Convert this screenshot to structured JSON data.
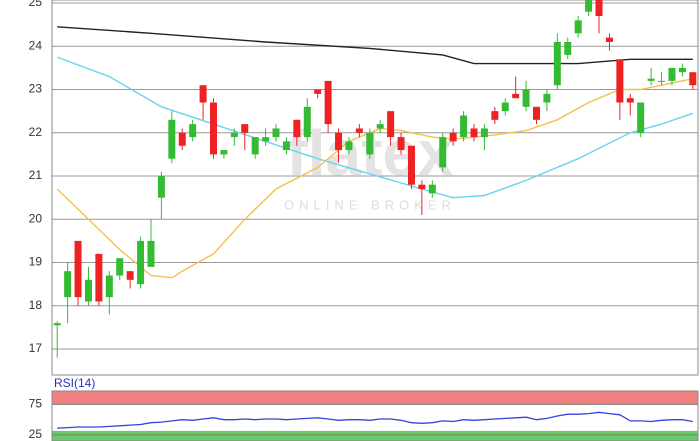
{
  "chart_data": [
    {
      "type": "candlestick",
      "open": [
        17.55,
        18.2,
        19.5,
        18.1,
        19.2,
        18.2,
        18.7,
        18.8,
        18.5,
        18.9,
        20.5,
        21.4,
        22.0,
        21.9,
        23.1,
        22.7,
        21.5,
        21.9,
        22.2,
        21.5,
        21.8,
        21.9,
        21.6,
        22.3,
        21.9,
        23.0,
        23.2,
        22.0,
        21.6,
        22.1,
        21.5,
        22.1,
        22.5,
        21.9,
        21.7,
        20.8,
        20.6,
        21.2,
        22.0,
        21.9,
        22.1,
        21.9,
        22.5,
        22.5,
        22.9,
        22.6,
        22.6,
        22.7,
        23.1,
        23.8,
        24.3,
        24.8,
        25.1,
        24.2,
        23.7,
        22.8,
        22.0,
        23.2,
        23.2,
        23.2,
        23.4,
        23.4
      ],
      "high": [
        17.65,
        19.0,
        19.5,
        18.9,
        19.2,
        18.8,
        19.1,
        18.8,
        19.6,
        20.0,
        21.1,
        22.5,
        22.1,
        22.3,
        23.1,
        22.8,
        21.6,
        22.1,
        22.2,
        21.9,
        22.1,
        22.2,
        21.9,
        22.3,
        22.8,
        23.0,
        23.2,
        22.1,
        21.9,
        22.2,
        22.1,
        22.3,
        22.5,
        22.0,
        21.7,
        20.9,
        20.9,
        22.0,
        22.1,
        22.5,
        22.2,
        22.2,
        22.6,
        22.8,
        23.3,
        23.2,
        22.6,
        23.0,
        24.3,
        24.2,
        24.7,
        25.1,
        25.1,
        24.3,
        23.7,
        22.9,
        22.7,
        23.5,
        23.4,
        23.5,
        23.6,
        23.4
      ],
      "low": [
        16.8,
        17.6,
        18.0,
        18.0,
        18.0,
        17.8,
        18.6,
        18.4,
        18.4,
        18.9,
        20.0,
        21.3,
        21.6,
        21.8,
        22.3,
        21.4,
        21.4,
        21.7,
        21.6,
        21.4,
        21.7,
        21.8,
        21.5,
        21.7,
        21.8,
        22.8,
        22.0,
        21.3,
        21.5,
        21.9,
        21.4,
        22.0,
        21.7,
        21.5,
        20.7,
        20.1,
        20.5,
        21.1,
        21.7,
        21.8,
        21.8,
        21.6,
        22.2,
        22.4,
        22.8,
        22.5,
        22.2,
        22.5,
        23.0,
        23.7,
        24.2,
        24.7,
        24.3,
        23.9,
        22.3,
        22.4,
        21.9,
        23.1,
        23.1,
        23.1,
        23.3,
        23.0
      ],
      "close": [
        17.6,
        18.8,
        18.2,
        18.6,
        18.1,
        18.7,
        19.1,
        18.6,
        19.5,
        19.5,
        21.0,
        22.3,
        21.7,
        22.2,
        22.7,
        21.5,
        21.6,
        22.0,
        22.0,
        21.9,
        21.9,
        22.1,
        21.8,
        21.9,
        22.6,
        22.9,
        22.2,
        21.6,
        21.8,
        22.0,
        22.0,
        22.2,
        21.9,
        21.6,
        20.8,
        20.7,
        20.8,
        21.9,
        21.8,
        22.4,
        21.9,
        22.1,
        22.3,
        22.7,
        22.8,
        23.0,
        22.3,
        22.9,
        24.1,
        24.1,
        24.6,
        25.1,
        24.7,
        24.1,
        22.7,
        22.7,
        22.7,
        23.25,
        23.2,
        23.5,
        23.5,
        23.1
      ],
      "up_color": "#33bb33",
      "down_color": "#ee2222",
      "ylim": [
        16.4,
        25.07
      ],
      "yticks": [
        17,
        18,
        19,
        20,
        21,
        22,
        23,
        24,
        25
      ],
      "grid": true,
      "overlays": [
        {
          "color": "#222222",
          "x": [
            0,
            9,
            20,
            30,
            37,
            40,
            50,
            55,
            61
          ],
          "values": [
            24.45,
            24.3,
            24.1,
            23.95,
            23.8,
            23.6,
            23.6,
            23.7,
            23.7
          ]
        },
        {
          "color": "#66d4f0",
          "x": [
            0,
            5,
            10,
            15,
            20,
            25,
            30,
            35,
            38,
            41,
            45,
            50,
            55,
            58,
            61
          ],
          "values": [
            23.75,
            23.3,
            22.6,
            22.2,
            21.8,
            21.4,
            21.05,
            20.7,
            20.5,
            20.55,
            20.9,
            21.4,
            22.0,
            22.2,
            22.45
          ]
        },
        {
          "color": "#f5c04a",
          "x": [
            0,
            3,
            6,
            9,
            11,
            12,
            15,
            18,
            21,
            25,
            28,
            31,
            33,
            36,
            38,
            42,
            45,
            48,
            51,
            54,
            56,
            58,
            61
          ],
          "values": [
            20.7,
            20.0,
            19.3,
            18.7,
            18.65,
            18.8,
            19.2,
            20.0,
            20.7,
            21.2,
            21.8,
            22.1,
            22.05,
            21.9,
            21.85,
            21.95,
            22.05,
            22.3,
            22.7,
            23.0,
            23.0,
            23.1,
            23.25
          ]
        }
      ],
      "watermark": {
        "title": "flatex",
        "subtitle": "ONLINE BROKER"
      }
    },
    {
      "type": "line",
      "title": "RSI(14)",
      "color": "#3344dd",
      "values": [
        36,
        37,
        38,
        38,
        38,
        39,
        40,
        41,
        42,
        45,
        46,
        48,
        50,
        49,
        51,
        53,
        50,
        50,
        51,
        50,
        51,
        51,
        50,
        51,
        52,
        53,
        51,
        49,
        50,
        50,
        49,
        51,
        51,
        49,
        45,
        44,
        45,
        48,
        47,
        50,
        49,
        50,
        51,
        52,
        53,
        54,
        50,
        52,
        56,
        59,
        59,
        60,
        62,
        60,
        58,
        48,
        48,
        47,
        49,
        50,
        50,
        47
      ],
      "ylim": [
        15,
        97
      ],
      "yticks": [
        25,
        75
      ],
      "overbought_color": "#f08080",
      "oversold_color": "#66cc66"
    }
  ]
}
